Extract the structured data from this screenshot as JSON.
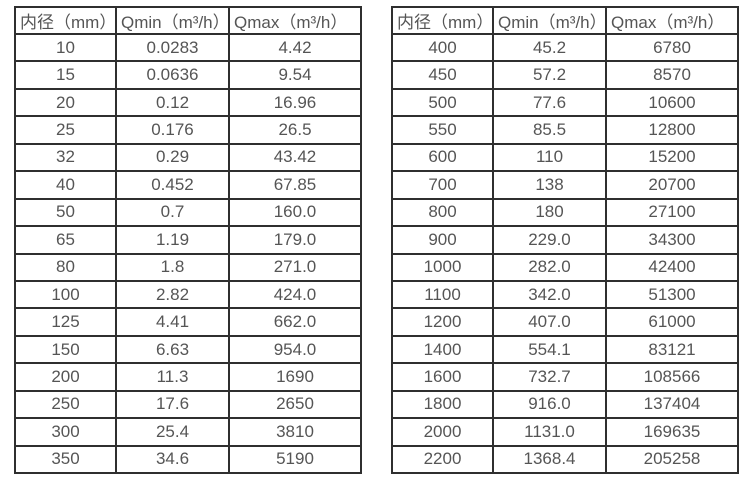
{
  "page": {
    "background": "#ffffff",
    "text_color": "#555555",
    "border_color": "#2f2f2f"
  },
  "chart_data": [
    {
      "type": "table",
      "name": "flow-rate-table-small-diameters",
      "columns": [
        "内径（mm）",
        "Qmin（m³/h）",
        "Qmax（m³/h）"
      ],
      "rows": [
        [
          "10",
          "0.0283",
          "4.42"
        ],
        [
          "15",
          "0.0636",
          "9.54"
        ],
        [
          "20",
          "0.12",
          "16.96"
        ],
        [
          "25",
          "0.176",
          "26.5"
        ],
        [
          "32",
          "0.29",
          "43.42"
        ],
        [
          "40",
          "0.452",
          "67.85"
        ],
        [
          "50",
          "0.7",
          "160.0"
        ],
        [
          "65",
          "1.19",
          "179.0"
        ],
        [
          "80",
          "1.8",
          "271.0"
        ],
        [
          "100",
          "2.82",
          "424.0"
        ],
        [
          "125",
          "4.41",
          "662.0"
        ],
        [
          "150",
          "6.63",
          "954.0"
        ],
        [
          "200",
          "11.3",
          "1690"
        ],
        [
          "250",
          "17.6",
          "2650"
        ],
        [
          "300",
          "25.4",
          "3810"
        ],
        [
          "350",
          "34.6",
          "5190"
        ]
      ]
    },
    {
      "type": "table",
      "name": "flow-rate-table-large-diameters",
      "columns": [
        "内径（mm）",
        "Qmin（m³/h）",
        "Qmax（m³/h）"
      ],
      "rows": [
        [
          "400",
          "45.2",
          "6780"
        ],
        [
          "450",
          "57.2",
          "8570"
        ],
        [
          "500",
          "77.6",
          "10600"
        ],
        [
          "550",
          "85.5",
          "12800"
        ],
        [
          "600",
          "110",
          "15200"
        ],
        [
          "700",
          "138",
          "20700"
        ],
        [
          "800",
          "180",
          "27100"
        ],
        [
          "900",
          "229.0",
          "34300"
        ],
        [
          "1000",
          "282.0",
          "42400"
        ],
        [
          "1100",
          "342.0",
          "51300"
        ],
        [
          "1200",
          "407.0",
          "61000"
        ],
        [
          "1400",
          "554.1",
          "83121"
        ],
        [
          "1600",
          "732.7",
          "108566"
        ],
        [
          "1800",
          "916.0",
          "137404"
        ],
        [
          "2000",
          "1131.0",
          "169635"
        ],
        [
          "2200",
          "1368.4",
          "205258"
        ]
      ]
    }
  ]
}
